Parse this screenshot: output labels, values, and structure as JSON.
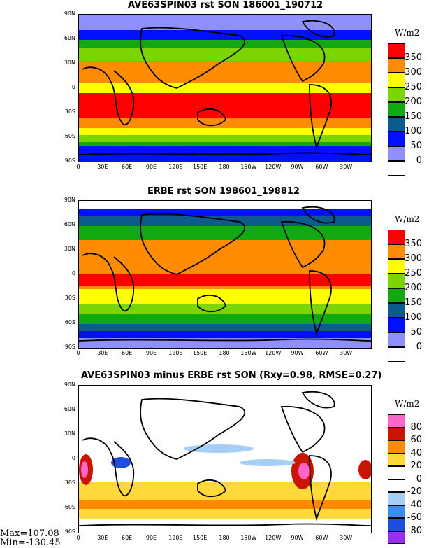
{
  "panels": [
    {
      "title": "AVE63SPIN03 rst SON 186001_190712",
      "units": "W/m2",
      "colorbar": {
        "colors": [
          "#ffffff",
          "#8f8fff",
          "#0010ff",
          "#0b5c8c",
          "#11a811",
          "#7cd400",
          "#ffff00",
          "#ff8c00",
          "#ff0000"
        ],
        "labels": [
          "0",
          "50",
          "100",
          "150",
          "200",
          "250",
          "300",
          "350"
        ]
      }
    },
    {
      "title": "ERBE rst SON 198601_198812",
      "units": "W/m2",
      "colorbar": {
        "colors": [
          "#ffffff",
          "#8f8fff",
          "#0010ff",
          "#0b5c8c",
          "#11a811",
          "#7cd400",
          "#ffff00",
          "#ff8c00",
          "#ff0000"
        ],
        "labels": [
          "0",
          "50",
          "100",
          "150",
          "200",
          "250",
          "300",
          "350"
        ]
      }
    },
    {
      "title": "AVE63SPIN03 minus ERBE rst SON (Rxy=0.98, RMSE=0.27)",
      "units": "W/m2",
      "colorbar": {
        "colors": [
          "#9a2ef2",
          "#1c4fe0",
          "#3c8cf0",
          "#a6cff5",
          "#ffffff",
          "#ffffff",
          "#ffd93a",
          "#ff8c00",
          "#c81400",
          "#ff64c8"
        ],
        "labels": [
          "-80",
          "-60",
          "-40",
          "-20",
          "0",
          "20",
          "40",
          "60",
          "80"
        ]
      },
      "stats": {
        "max": "Max=107.08",
        "min": "Min=-130.45"
      }
    }
  ],
  "lat_labels": [
    "90N",
    "60N",
    "30N",
    "0",
    "30S",
    "60S",
    "90S"
  ],
  "lon_labels": [
    "0",
    "30E",
    "60E",
    "90E",
    "120E",
    "150E",
    "180",
    "150W",
    "120W",
    "90W",
    "60W",
    "30W"
  ]
}
